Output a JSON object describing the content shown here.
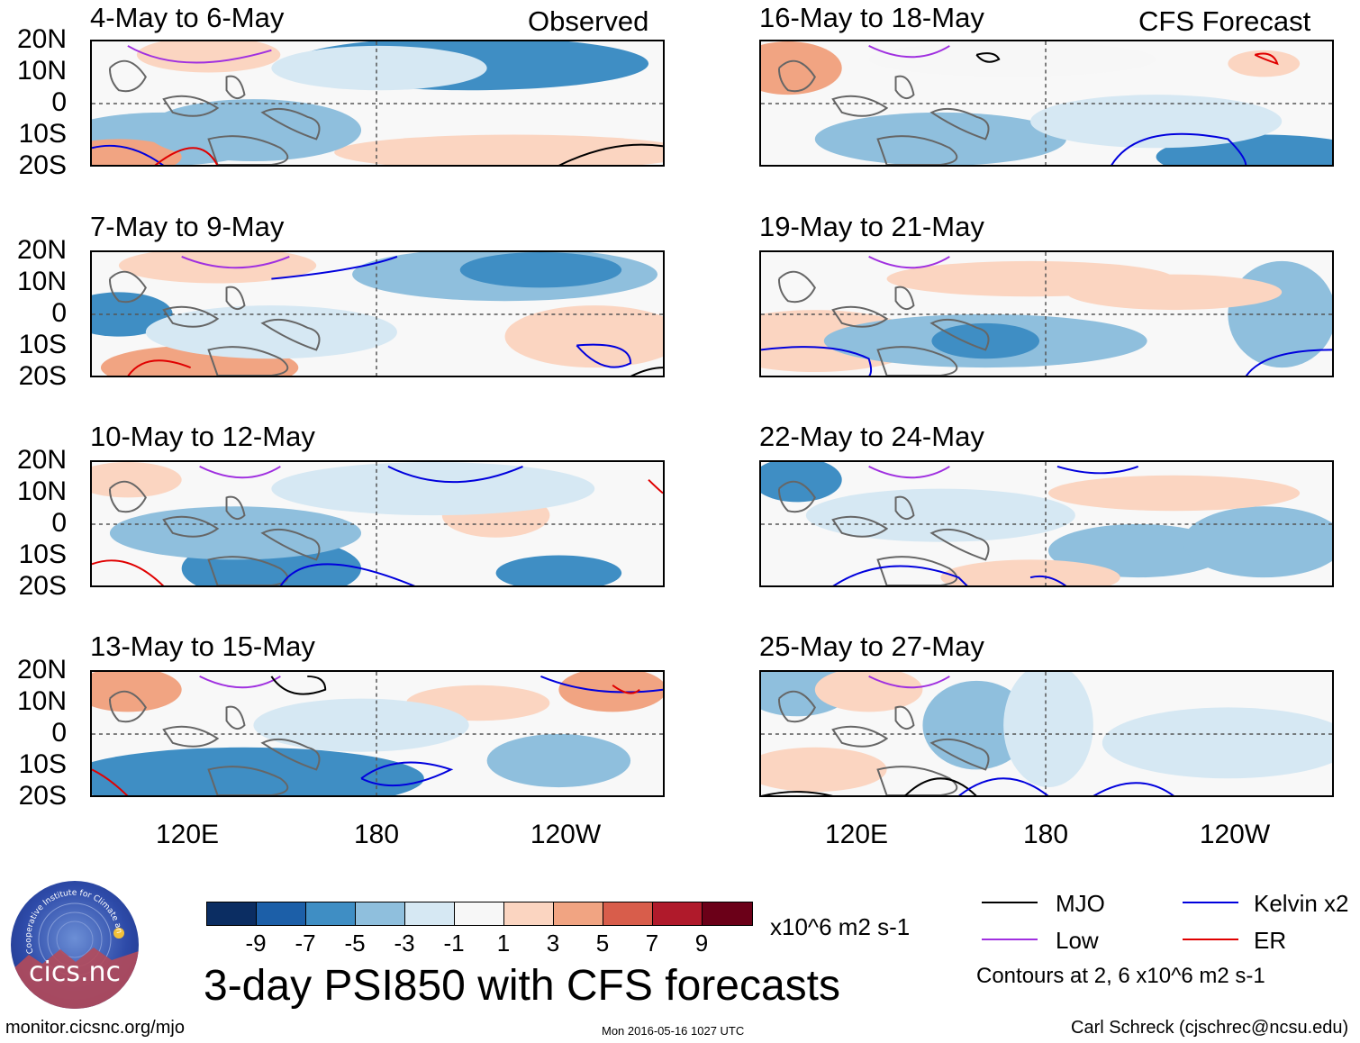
{
  "columns": {
    "left_label": "Observed",
    "right_label": "CFS Forecast"
  },
  "panels": {
    "left": [
      "4-May to 6-May",
      "7-May to 9-May",
      "10-May to 12-May",
      "13-May to 15-May"
    ],
    "right": [
      "16-May to 18-May",
      "19-May to 21-May",
      "22-May to 24-May",
      "25-May to 27-May"
    ]
  },
  "axes": {
    "lat_labels": [
      "20N",
      "10N",
      "0",
      "10S",
      "20S"
    ],
    "lon_labels": [
      "120E",
      "180",
      "120W"
    ]
  },
  "colorbar": {
    "colors": [
      "#0b2d62",
      "#1c5fa8",
      "#3f8ec4",
      "#8fbfdd",
      "#d6e8f3",
      "#f7f7f7",
      "#fbd5c1",
      "#f1a482",
      "#d85d4b",
      "#b01a2b",
      "#6b0018"
    ],
    "ticks": [
      "-9",
      "-7",
      "-5",
      "-3",
      "-1",
      "1",
      "3",
      "5",
      "7",
      "9"
    ],
    "units": "x10^6 m2 s-1"
  },
  "title": "3-day PSI850 with CFS forecasts",
  "legend": {
    "items": [
      {
        "label": "MJO",
        "color": "#000000"
      },
      {
        "label": "Kelvin x2",
        "color": "#0000dd"
      },
      {
        "label": "Low",
        "color": "#a030e0"
      },
      {
        "label": "ER",
        "color": "#e00000"
      }
    ],
    "contour_note": "Contours at 2, 6 x10^6 m2 s-1"
  },
  "footer": {
    "left": "monitor.cicsnc.org/mjo",
    "center": "Mon 2016-05-16 1027 UTC",
    "right": "Carl Schreck (cjschrec@ncsu.edu)"
  },
  "logo": {
    "name": "cics.nc",
    "arc_text": "Cooperative Institute for Climate and Satellites"
  }
}
